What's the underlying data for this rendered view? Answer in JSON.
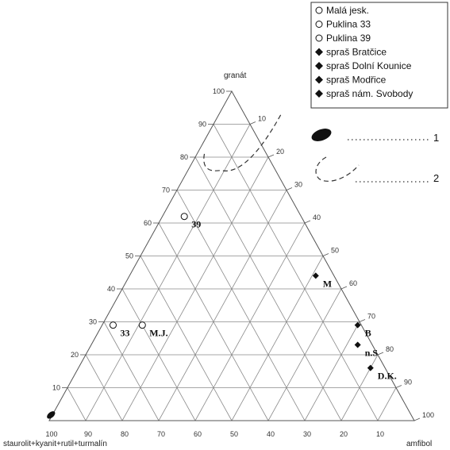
{
  "chart_data": {
    "type": "ternary",
    "corners": {
      "top": "granát",
      "left": "staurolit+kyanit+rutil+turmalín",
      "right": "amfibol"
    },
    "granat_ticks": [
      "10",
      "20",
      "30",
      "40",
      "50",
      "60",
      "70",
      "80",
      "90",
      "100"
    ],
    "amfibol_ticks": [
      "10",
      "20",
      "30",
      "40",
      "50",
      "60",
      "70",
      "80",
      "90",
      "100"
    ],
    "base_ticks": [
      "100",
      "90",
      "80",
      "70",
      "60",
      "50",
      "40",
      "30",
      "20",
      "10"
    ],
    "legend": [
      {
        "label": "Malá jesk.",
        "marker": "circle-open"
      },
      {
        "label": "Puklina 33",
        "marker": "circle-open"
      },
      {
        "label": "Puklina 39",
        "marker": "circle-open"
      },
      {
        "label": "spraš Bratčice",
        "marker": "diamond-filled"
      },
      {
        "label": "spraš Dolní Kounice",
        "marker": "diamond-filled"
      },
      {
        "label": "spraš Modřice",
        "marker": "diamond-filled"
      },
      {
        "label": "spraš nám. Svobody",
        "marker": "diamond-filled"
      }
    ],
    "points": [
      {
        "label": "39",
        "marker": "circle-open",
        "granat": 62,
        "amfibol": 6
      },
      {
        "label": "33",
        "marker": "circle-open",
        "granat": 29,
        "amfibol": 3
      },
      {
        "label": "M.J.",
        "marker": "circle-open",
        "granat": 29,
        "amfibol": 11
      },
      {
        "label": "M",
        "marker": "diamond-filled",
        "granat": 44,
        "amfibol": 51
      },
      {
        "label": "B",
        "marker": "diamond-filled",
        "granat": 29,
        "amfibol": 70
      },
      {
        "label": "n.S",
        "marker": "diamond-filled",
        "granat": 23,
        "amfibol": 73
      },
      {
        "label": "D.K.",
        "marker": "diamond-filled",
        "granat": 16,
        "amfibol": 80
      }
    ],
    "regions": [
      {
        "key": "1",
        "style": "filled-ellipse",
        "granat_center": 1,
        "amfibol_center": 0
      },
      {
        "key": "2",
        "style": "dashed-outline",
        "granat_range": [
          76,
          93
        ],
        "amfibol_range": [
          2,
          20
        ]
      }
    ],
    "key": {
      "item_1": "1",
      "item_2": "2"
    }
  }
}
